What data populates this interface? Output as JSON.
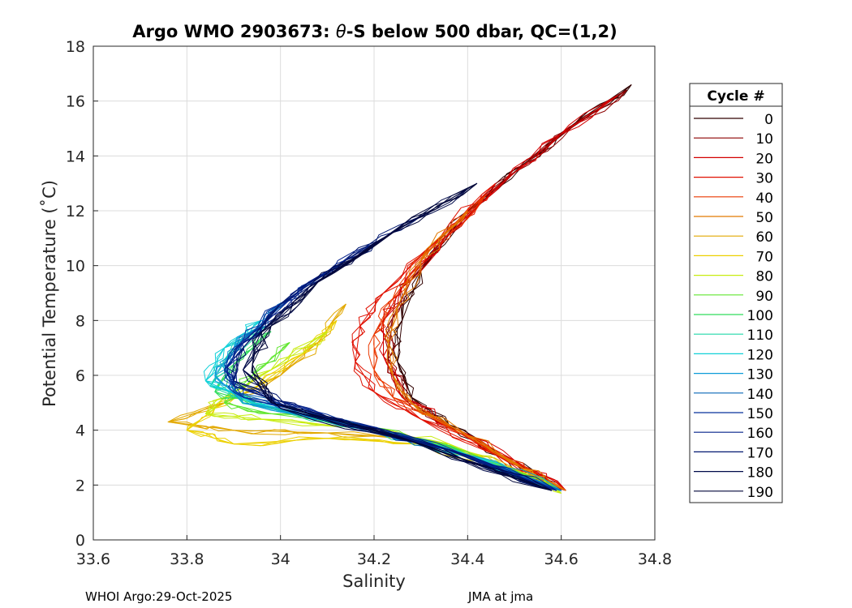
{
  "chart_data": {
    "type": "line",
    "title": "Argo WMO 2903673: θ-S below 500 dbar,  QC=(1,2)",
    "title_parts": {
      "prefix": "Argo WMO 2903673: ",
      "theta": "θ",
      "suffix": "-S below 500 dbar,  QC=(1,2)"
    },
    "xlabel": "Salinity",
    "ylabel": "Potential Temperature (˚C)",
    "xlim": [
      33.6,
      34.8
    ],
    "ylim": [
      0,
      18
    ],
    "xticks": [
      "33.6",
      "33.8",
      "34",
      "34.2",
      "34.4",
      "34.6",
      "34.8"
    ],
    "yticks": [
      "0",
      "2",
      "4",
      "6",
      "8",
      "10",
      "12",
      "14",
      "16",
      "18"
    ],
    "grid": true,
    "legend": {
      "title": "Cycle #",
      "placement": "outside-right",
      "entries": [
        "0",
        "10",
        "20",
        "30",
        "40",
        "50",
        "60",
        "70",
        "80",
        "90",
        "100",
        "110",
        "120",
        "130",
        "140",
        "150",
        "160",
        "170",
        "180",
        "190"
      ],
      "colors": [
        "#300000",
        "#8c0000",
        "#d20000",
        "#e01000",
        "#ea3800",
        "#e27a00",
        "#e2a800",
        "#ecd000",
        "#c8ec10",
        "#60e630",
        "#30dc5c",
        "#20d8a8",
        "#10d0d8",
        "#0c9cd8",
        "#0866b8",
        "#06309c",
        "#04208a",
        "#021870",
        "#000a4a",
        "#00063a"
      ]
    },
    "series": [
      {
        "name": "0",
        "color": "#300000",
        "points": [
          [
            34.75,
            16.6
          ],
          [
            34.63,
            15.2
          ],
          [
            34.52,
            13.7
          ],
          [
            34.4,
            12.0
          ],
          [
            34.3,
            9.8
          ],
          [
            34.26,
            8.0
          ],
          [
            34.25,
            6.5
          ],
          [
            34.28,
            5.2
          ],
          [
            34.36,
            4.2
          ],
          [
            34.48,
            3.0
          ],
          [
            34.6,
            1.8
          ]
        ]
      },
      {
        "name": "10",
        "color": "#8c0000",
        "points": [
          [
            34.74,
            16.4
          ],
          [
            34.62,
            15.0
          ],
          [
            34.5,
            13.4
          ],
          [
            34.37,
            11.4
          ],
          [
            34.28,
            9.5
          ],
          [
            34.24,
            8.1
          ],
          [
            34.23,
            6.6
          ],
          [
            34.27,
            5.1
          ],
          [
            34.38,
            4.0
          ],
          [
            34.5,
            2.8
          ],
          [
            34.61,
            1.8
          ]
        ]
      },
      {
        "name": "20",
        "color": "#d20000",
        "points": [
          [
            34.72,
            16.2
          ],
          [
            34.6,
            14.8
          ],
          [
            34.48,
            13.1
          ],
          [
            34.35,
            11.0
          ],
          [
            34.26,
            9.2
          ],
          [
            34.22,
            8.0
          ],
          [
            34.22,
            6.7
          ],
          [
            34.26,
            5.2
          ],
          [
            34.37,
            4.1
          ],
          [
            34.5,
            2.9
          ],
          [
            34.61,
            1.8
          ]
        ]
      },
      {
        "name": "30",
        "color": "#e01000",
        "points": [
          [
            34.46,
            13.0
          ],
          [
            34.34,
            11.0
          ],
          [
            34.22,
            9.0
          ],
          [
            34.17,
            7.8
          ],
          [
            34.16,
            6.5
          ],
          [
            34.2,
            5.4
          ],
          [
            34.3,
            4.4
          ],
          [
            34.46,
            3.1
          ],
          [
            34.61,
            1.8
          ]
        ]
      },
      {
        "name": "40",
        "color": "#ea3800",
        "points": [
          [
            34.44,
            12.6
          ],
          [
            34.32,
            10.6
          ],
          [
            34.24,
            8.8
          ],
          [
            34.2,
            7.5
          ],
          [
            34.2,
            6.2
          ],
          [
            34.24,
            5.2
          ],
          [
            34.34,
            4.3
          ],
          [
            34.48,
            3.0
          ],
          [
            34.6,
            1.8
          ]
        ]
      },
      {
        "name": "50",
        "color": "#e27a00",
        "points": [
          [
            34.4,
            12.0
          ],
          [
            34.3,
            10.2
          ],
          [
            34.25,
            8.5
          ],
          [
            34.23,
            7.2
          ],
          [
            34.24,
            6.0
          ],
          [
            34.28,
            5.0
          ],
          [
            34.4,
            3.8
          ],
          [
            34.52,
            2.6
          ],
          [
            34.61,
            1.8
          ]
        ]
      },
      {
        "name": "60",
        "color": "#e2a800",
        "points": [
          [
            34.14,
            8.6
          ],
          [
            34.08,
            7.2
          ],
          [
            34.0,
            6.0
          ],
          [
            33.88,
            5.0
          ],
          [
            33.76,
            4.3
          ],
          [
            33.9,
            4.0
          ],
          [
            34.1,
            3.9
          ],
          [
            34.3,
            3.7
          ],
          [
            34.5,
            2.6
          ],
          [
            34.6,
            1.8
          ]
        ]
      },
      {
        "name": "70",
        "color": "#ecd000",
        "points": [
          [
            34.12,
            8.0
          ],
          [
            34.05,
            6.8
          ],
          [
            33.95,
            5.6
          ],
          [
            33.86,
            4.8
          ],
          [
            33.8,
            4.0
          ],
          [
            33.9,
            3.5
          ],
          [
            34.1,
            3.7
          ],
          [
            34.3,
            3.5
          ],
          [
            34.5,
            2.5
          ],
          [
            34.6,
            1.8
          ]
        ]
      },
      {
        "name": "80",
        "color": "#c8ec10",
        "points": [
          [
            34.1,
            7.6
          ],
          [
            33.98,
            6.2
          ],
          [
            33.88,
            5.2
          ],
          [
            33.84,
            4.6
          ],
          [
            33.96,
            4.4
          ],
          [
            34.16,
            4.1
          ],
          [
            34.36,
            3.5
          ],
          [
            34.52,
            2.4
          ],
          [
            34.6,
            1.7
          ]
        ]
      },
      {
        "name": "90",
        "color": "#60e630",
        "points": [
          [
            34.02,
            7.2
          ],
          [
            33.94,
            6.0
          ],
          [
            33.88,
            5.0
          ],
          [
            33.98,
            4.6
          ],
          [
            34.2,
            4.1
          ],
          [
            34.4,
            3.2
          ],
          [
            34.6,
            1.8
          ]
        ]
      },
      {
        "name": "100",
        "color": "#30dc5c",
        "points": [
          [
            33.98,
            7.6
          ],
          [
            33.9,
            6.4
          ],
          [
            33.86,
            5.4
          ],
          [
            33.98,
            4.8
          ],
          [
            34.2,
            4.0
          ],
          [
            34.4,
            3.1
          ],
          [
            34.6,
            1.8
          ]
        ]
      },
      {
        "name": "110",
        "color": "#20d8a8",
        "points": [
          [
            33.97,
            7.8
          ],
          [
            33.89,
            6.8
          ],
          [
            33.85,
            5.6
          ],
          [
            33.95,
            4.9
          ],
          [
            34.2,
            4.0
          ],
          [
            34.4,
            3.1
          ],
          [
            34.6,
            1.8
          ]
        ]
      },
      {
        "name": "120",
        "color": "#10d0d8",
        "points": [
          [
            33.96,
            8.0
          ],
          [
            33.88,
            7.0
          ],
          [
            33.84,
            5.8
          ],
          [
            33.94,
            5.0
          ],
          [
            34.2,
            4.0
          ],
          [
            34.42,
            3.0
          ],
          [
            34.6,
            1.8
          ]
        ]
      },
      {
        "name": "130",
        "color": "#0c9cd8",
        "points": [
          [
            33.98,
            8.2
          ],
          [
            33.9,
            7.0
          ],
          [
            33.86,
            6.0
          ],
          [
            33.92,
            5.0
          ],
          [
            34.2,
            4.0
          ],
          [
            34.4,
            3.1
          ],
          [
            34.6,
            1.8
          ]
        ]
      },
      {
        "name": "140",
        "color": "#0866b8",
        "points": [
          [
            34.02,
            8.8
          ],
          [
            33.94,
            7.6
          ],
          [
            33.88,
            6.4
          ],
          [
            33.9,
            5.4
          ],
          [
            34.12,
            4.3
          ],
          [
            34.36,
            3.3
          ],
          [
            34.6,
            1.8
          ]
        ]
      },
      {
        "name": "150",
        "color": "#06309c",
        "points": [
          [
            34.1,
            9.8
          ],
          [
            34.0,
            8.6
          ],
          [
            33.92,
            7.2
          ],
          [
            33.88,
            6.2
          ],
          [
            33.92,
            5.2
          ],
          [
            34.14,
            4.3
          ],
          [
            34.38,
            3.2
          ],
          [
            34.59,
            1.8
          ]
        ]
      },
      {
        "name": "160",
        "color": "#04208a",
        "points": [
          [
            34.2,
            10.8
          ],
          [
            34.06,
            9.4
          ],
          [
            33.96,
            7.8
          ],
          [
            33.9,
            6.6
          ],
          [
            33.9,
            5.6
          ],
          [
            34.1,
            4.5
          ],
          [
            34.36,
            3.3
          ],
          [
            34.59,
            1.8
          ]
        ]
      },
      {
        "name": "170",
        "color": "#021870",
        "points": [
          [
            34.3,
            11.8
          ],
          [
            34.14,
            10.2
          ],
          [
            34.0,
            8.6
          ],
          [
            33.92,
            7.0
          ],
          [
            33.9,
            5.8
          ],
          [
            34.06,
            4.6
          ],
          [
            34.34,
            3.4
          ],
          [
            34.58,
            1.8
          ]
        ]
      },
      {
        "name": "180",
        "color": "#000a4a",
        "points": [
          [
            34.4,
            12.8
          ],
          [
            34.22,
            11.0
          ],
          [
            34.06,
            9.2
          ],
          [
            33.96,
            7.6
          ],
          [
            33.92,
            6.2
          ],
          [
            34.0,
            4.8
          ],
          [
            34.3,
            3.5
          ],
          [
            34.58,
            1.8
          ]
        ]
      },
      {
        "name": "190",
        "color": "#00063a",
        "points": [
          [
            34.42,
            13.0
          ],
          [
            34.24,
            11.2
          ],
          [
            34.08,
            9.4
          ],
          [
            33.98,
            7.8
          ],
          [
            33.94,
            6.4
          ],
          [
            33.98,
            5.0
          ],
          [
            34.28,
            3.6
          ],
          [
            34.58,
            1.8
          ]
        ]
      }
    ]
  },
  "footer": {
    "left": "WHOI Argo:29-Oct-2025",
    "right": "JMA at jma"
  }
}
